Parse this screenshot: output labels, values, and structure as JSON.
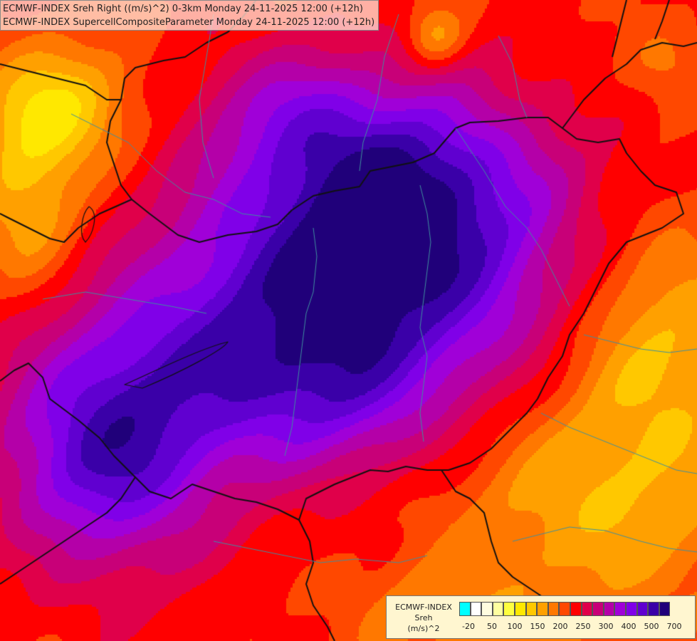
{
  "map": {
    "titles": [
      "ECMWF-INDEX Sreh Right ((m/s)^2) 0-3km Monday 24-11-2025 12:00 (+12h)",
      "ECMWF-INDEX SupercellCompositeParameter Monday 24-11-2025 12:00 (+12h)"
    ],
    "region_note": ""
  },
  "legend": {
    "title_lines": [
      "ECMWF-INDEX",
      "Sreh",
      "(m/s)^2"
    ],
    "colors": [
      "#00ffff",
      "#ffffff",
      "#fffde0",
      "#ffffa0",
      "#ffff40",
      "#ffe800",
      "#ffc800",
      "#ffa000",
      "#ff7800",
      "#ff4800",
      "#ff0000",
      "#e0004a",
      "#c80078",
      "#b400a8",
      "#a000d8",
      "#8000e8",
      "#6000d0",
      "#3a00a8",
      "#20007a"
    ],
    "tick_labels": [
      "-20",
      "50",
      "100",
      "150",
      "200",
      "250",
      "300",
      "400",
      "500",
      "700"
    ]
  }
}
